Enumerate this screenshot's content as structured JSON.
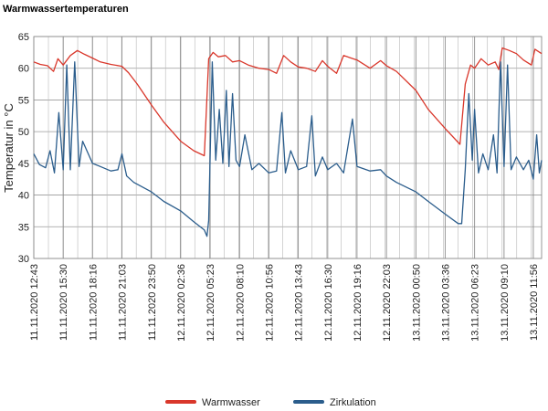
{
  "title": "Warmwassertemperaturen",
  "chart_data": {
    "type": "line",
    "title": "Warmwassertemperaturen",
    "xlabel": "",
    "ylabel": "Temperatur in °C",
    "ylim": [
      30,
      65
    ],
    "yticks": [
      30,
      35,
      40,
      45,
      50,
      55,
      60,
      65
    ],
    "grid": true,
    "legend_position": "bottom",
    "x_time_range": [
      "11.11.2020 12:43",
      "13.11.2020 12:43"
    ],
    "x_tick_labels": [
      "11.11.2020 12:43",
      "11.11.2020 15:30",
      "11.11.2020 18:16",
      "11.11.2020 21:03",
      "11.11.2020 23:50",
      "12.11.2020 02:36",
      "12.11.2020 05:23",
      "12.11.2020 08:10",
      "12.11.2020 10:56",
      "12.11.2020 13:43",
      "12.11.2020 16:30",
      "12.11.2020 19:16",
      "12.11.2020 22:03",
      "13.11.2020 00:50",
      "13.11.2020 03:36",
      "13.11.2020 06:23",
      "13.11.2020 09:10",
      "13.11.2020 11:56"
    ],
    "series": [
      {
        "name": "Warmwasser",
        "color": "#d9372b",
        "points": [
          [
            "11.11.2020 12:43",
            61.0
          ],
          [
            "11.11.2020 13:20",
            60.6
          ],
          [
            "11.11.2020 14:00",
            60.4
          ],
          [
            "11.11.2020 14:35",
            59.5
          ],
          [
            "11.11.2020 15:00",
            61.5
          ],
          [
            "11.11.2020 15:30",
            60.5
          ],
          [
            "11.11.2020 16:10",
            62.0
          ],
          [
            "11.11.2020 16:50",
            62.8
          ],
          [
            "11.11.2020 17:30",
            62.2
          ],
          [
            "11.11.2020 18:16",
            61.6
          ],
          [
            "11.11.2020 19:00",
            61.0
          ],
          [
            "11.11.2020 20:00",
            60.6
          ],
          [
            "11.11.2020 21:03",
            60.3
          ],
          [
            "11.11.2020 21:40",
            59.3
          ],
          [
            "11.11.2020 22:30",
            57.5
          ],
          [
            "11.11.2020 23:50",
            54.2
          ],
          [
            "12.11.2020 01:00",
            51.5
          ],
          [
            "12.11.2020 02:36",
            48.5
          ],
          [
            "12.11.2020 03:50",
            47.0
          ],
          [
            "12.11.2020 04:50",
            46.2
          ],
          [
            "12.11.2020 05:15",
            61.5
          ],
          [
            "12.11.2020 05:40",
            62.5
          ],
          [
            "12.11.2020 06:10",
            61.8
          ],
          [
            "12.11.2020 06:50",
            62.0
          ],
          [
            "12.11.2020 07:30",
            61.0
          ],
          [
            "12.11.2020 08:10",
            61.2
          ],
          [
            "12.11.2020 09:00",
            60.5
          ],
          [
            "12.11.2020 10:00",
            60.0
          ],
          [
            "12.11.2020 10:56",
            59.8
          ],
          [
            "12.11.2020 11:40",
            59.2
          ],
          [
            "12.11.2020 12:20",
            62.0
          ],
          [
            "12.11.2020 13:00",
            61.0
          ],
          [
            "12.11.2020 13:43",
            60.2
          ],
          [
            "12.11.2020 14:30",
            60.0
          ],
          [
            "12.11.2020 15:20",
            59.5
          ],
          [
            "12.11.2020 16:00",
            61.2
          ],
          [
            "12.11.2020 16:30",
            60.3
          ],
          [
            "12.11.2020 17:20",
            59.2
          ],
          [
            "12.11.2020 18:00",
            62.0
          ],
          [
            "12.11.2020 19:16",
            61.3
          ],
          [
            "12.11.2020 20:30",
            60.0
          ],
          [
            "12.11.2020 21:30",
            61.2
          ],
          [
            "12.11.2020 22:03",
            60.4
          ],
          [
            "12.11.2020 23:00",
            59.5
          ],
          [
            "13.11.2020 00:50",
            56.5
          ],
          [
            "13.11.2020 02:00",
            53.5
          ],
          [
            "13.11.2020 03:36",
            50.5
          ],
          [
            "13.11.2020 05:00",
            48.0
          ],
          [
            "13.11.2020 05:30",
            57.5
          ],
          [
            "13.11.2020 06:00",
            60.5
          ],
          [
            "13.11.2020 06:23",
            60.0
          ],
          [
            "13.11.2020 07:00",
            61.5
          ],
          [
            "13.11.2020 07:40",
            60.5
          ],
          [
            "13.11.2020 08:20",
            61.0
          ],
          [
            "13.11.2020 08:40",
            59.8
          ],
          [
            "13.11.2020 09:00",
            63.2
          ],
          [
            "13.11.2020 09:40",
            62.8
          ],
          [
            "13.11.2020 10:20",
            62.3
          ],
          [
            "13.11.2020 11:00",
            61.3
          ],
          [
            "13.11.2020 11:45",
            60.5
          ],
          [
            "13.11.2020 12:05",
            63.0
          ],
          [
            "13.11.2020 12:43",
            62.3
          ]
        ]
      },
      {
        "name": "Zirkulation",
        "color": "#2b5d8c",
        "points": [
          [
            "11.11.2020 12:43",
            46.5
          ],
          [
            "11.11.2020 13:15",
            44.8
          ],
          [
            "11.11.2020 13:50",
            44.3
          ],
          [
            "11.11.2020 14:15",
            47.0
          ],
          [
            "11.11.2020 14:40",
            43.5
          ],
          [
            "11.11.2020 15:05",
            53.0
          ],
          [
            "11.11.2020 15:30",
            44.0
          ],
          [
            "11.11.2020 15:50",
            60.5
          ],
          [
            "11.11.2020 16:10",
            44.0
          ],
          [
            "11.11.2020 16:35",
            61.0
          ],
          [
            "11.11.2020 17:00",
            44.5
          ],
          [
            "11.11.2020 17:20",
            48.5
          ],
          [
            "11.11.2020 18:16",
            45.0
          ],
          [
            "11.11.2020 19:00",
            44.5
          ],
          [
            "11.11.2020 20:00",
            43.8
          ],
          [
            "11.11.2020 20:40",
            44.0
          ],
          [
            "11.11.2020 21:03",
            46.5
          ],
          [
            "11.11.2020 21:30",
            43.0
          ],
          [
            "11.11.2020 22:10",
            42.0
          ],
          [
            "11.11.2020 23:50",
            40.5
          ],
          [
            "12.11.2020 01:00",
            39.0
          ],
          [
            "12.11.2020 02:36",
            37.5
          ],
          [
            "12.11.2020 03:50",
            35.8
          ],
          [
            "12.11.2020 04:50",
            34.5
          ],
          [
            "12.11.2020 05:05",
            33.5
          ],
          [
            "12.11.2020 05:15",
            36.0
          ],
          [
            "12.11.2020 05:35",
            61.0
          ],
          [
            "12.11.2020 05:55",
            45.5
          ],
          [
            "12.11.2020 06:15",
            53.5
          ],
          [
            "12.11.2020 06:35",
            45.0
          ],
          [
            "12.11.2020 06:55",
            56.5
          ],
          [
            "12.11.2020 07:10",
            44.5
          ],
          [
            "12.11.2020 07:30",
            56.0
          ],
          [
            "12.11.2020 07:50",
            45.5
          ],
          [
            "12.11.2020 08:10",
            44.5
          ],
          [
            "12.11.2020 08:40",
            49.5
          ],
          [
            "12.11.2020 09:20",
            44.0
          ],
          [
            "12.11.2020 10:00",
            45.0
          ],
          [
            "12.11.2020 10:56",
            43.5
          ],
          [
            "12.11.2020 11:40",
            43.8
          ],
          [
            "12.11.2020 12:10",
            53.0
          ],
          [
            "12.11.2020 12:30",
            43.5
          ],
          [
            "12.11.2020 13:00",
            47.0
          ],
          [
            "12.11.2020 13:43",
            44.0
          ],
          [
            "12.11.2020 14:30",
            44.5
          ],
          [
            "12.11.2020 15:00",
            52.5
          ],
          [
            "12.11.2020 15:20",
            43.0
          ],
          [
            "12.11.2020 16:00",
            46.0
          ],
          [
            "12.11.2020 16:30",
            44.0
          ],
          [
            "12.11.2020 17:20",
            45.0
          ],
          [
            "12.11.2020 18:00",
            43.5
          ],
          [
            "12.11.2020 18:50",
            52.0
          ],
          [
            "12.11.2020 19:16",
            44.5
          ],
          [
            "12.11.2020 20:30",
            43.8
          ],
          [
            "12.11.2020 21:30",
            44.0
          ],
          [
            "12.11.2020 22:03",
            43.0
          ],
          [
            "12.11.2020 23:00",
            42.0
          ],
          [
            "13.11.2020 00:50",
            40.5
          ],
          [
            "13.11.2020 02:00",
            39.0
          ],
          [
            "13.11.2020 03:36",
            37.0
          ],
          [
            "13.11.2020 04:50",
            35.5
          ],
          [
            "13.11.2020 05:10",
            35.5
          ],
          [
            "13.11.2020 05:30",
            44.0
          ],
          [
            "13.11.2020 05:50",
            56.0
          ],
          [
            "13.11.2020 06:10",
            45.5
          ],
          [
            "13.11.2020 06:23",
            53.5
          ],
          [
            "13.11.2020 06:45",
            43.5
          ],
          [
            "13.11.2020 07:10",
            46.5
          ],
          [
            "13.11.2020 07:40",
            44.0
          ],
          [
            "13.11.2020 08:10",
            49.5
          ],
          [
            "13.11.2020 08:30",
            43.5
          ],
          [
            "13.11.2020 08:50",
            61.0
          ],
          [
            "13.11.2020 09:10",
            44.5
          ],
          [
            "13.11.2020 09:30",
            60.5
          ],
          [
            "13.11.2020 09:50",
            44.0
          ],
          [
            "13.11.2020 10:20",
            46.0
          ],
          [
            "13.11.2020 11:00",
            44.0
          ],
          [
            "13.11.2020 11:30",
            45.5
          ],
          [
            "13.11.2020 11:56",
            42.5
          ],
          [
            "13.11.2020 12:15",
            49.5
          ],
          [
            "13.11.2020 12:30",
            43.5
          ],
          [
            "13.11.2020 12:43",
            45.5
          ]
        ]
      }
    ]
  }
}
